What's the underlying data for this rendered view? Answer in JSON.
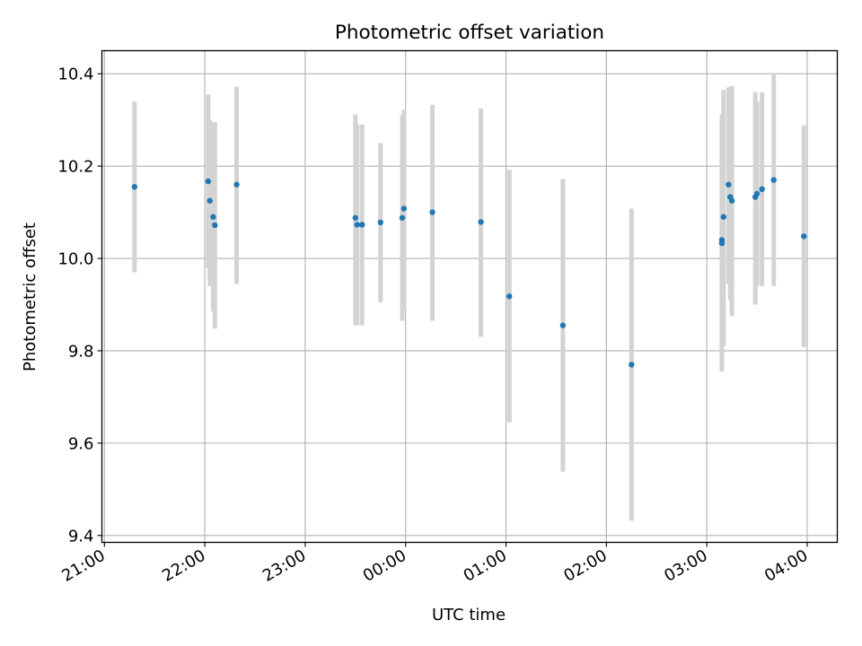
{
  "chart_data": {
    "type": "scatter",
    "title": "Photometric offset variation",
    "xlabel": "UTC time",
    "ylabel": "Photometric offset",
    "xlim_hours": [
      20.975,
      28.3
    ],
    "ylim": [
      9.385,
      10.45
    ],
    "grid": true,
    "x_ticks": [
      {
        "hour": 21,
        "label": "21:00"
      },
      {
        "hour": 22,
        "label": "22:00"
      },
      {
        "hour": 23,
        "label": "23:00"
      },
      {
        "hour": 24,
        "label": "00:00"
      },
      {
        "hour": 25,
        "label": "01:00"
      },
      {
        "hour": 26,
        "label": "02:00"
      },
      {
        "hour": 27,
        "label": "03:00"
      },
      {
        "hour": 28,
        "label": "04:00"
      }
    ],
    "y_ticks": [
      9.4,
      9.6,
      9.8,
      10.0,
      10.2,
      10.4
    ],
    "point_color": "#1f77b4",
    "errorbar_color": "#d3d3d3",
    "points": [
      {
        "time": "21:18",
        "y": 10.155,
        "ylow": 9.97,
        "yhigh": 10.34
      },
      {
        "time": "22:02",
        "y": 10.167,
        "ylow": 9.98,
        "yhigh": 10.355
      },
      {
        "time": "22:03",
        "y": 10.125,
        "ylow": 9.94,
        "yhigh": 10.3
      },
      {
        "time": "22:05",
        "y": 10.09,
        "ylow": 9.885,
        "yhigh": 10.295
      },
      {
        "time": "22:06",
        "y": 10.072,
        "ylow": 9.848,
        "yhigh": 10.295
      },
      {
        "time": "22:19",
        "y": 10.16,
        "ylow": 9.945,
        "yhigh": 10.372
      },
      {
        "time": "23:30",
        "y": 10.088,
        "ylow": 9.855,
        "yhigh": 10.312
      },
      {
        "time": "23:31",
        "y": 10.073,
        "ylow": 9.855,
        "yhigh": 10.29
      },
      {
        "time": "23:34",
        "y": 10.073,
        "ylow": 9.855,
        "yhigh": 10.29
      },
      {
        "time": "23:45",
        "y": 10.078,
        "ylow": 9.905,
        "yhigh": 10.25
      },
      {
        "time": "23:58",
        "y": 10.088,
        "ylow": 9.865,
        "yhigh": 10.31
      },
      {
        "time": "23:59",
        "y": 10.108,
        "ylow": 9.89,
        "yhigh": 10.322
      },
      {
        "time": "00:16",
        "y": 10.1,
        "ylow": 9.865,
        "yhigh": 10.333
      },
      {
        "time": "00:45",
        "y": 10.079,
        "ylow": 9.83,
        "yhigh": 10.325
      },
      {
        "time": "01:02",
        "y": 9.918,
        "ylow": 9.645,
        "yhigh": 10.192
      },
      {
        "time": "01:34",
        "y": 9.855,
        "ylow": 9.538,
        "yhigh": 10.172
      },
      {
        "time": "02:15",
        "y": 9.77,
        "ylow": 9.432,
        "yhigh": 10.108
      },
      {
        "time": "03:09",
        "y": 10.033,
        "ylow": 9.755,
        "yhigh": 10.312
      },
      {
        "time": "03:09",
        "y": 10.04,
        "ylow": 9.81,
        "yhigh": 10.29
      },
      {
        "time": "03:10",
        "y": 10.09,
        "ylow": 9.81,
        "yhigh": 10.365
      },
      {
        "time": "03:13",
        "y": 10.16,
        "ylow": 9.945,
        "yhigh": 10.37
      },
      {
        "time": "03:14",
        "y": 10.133,
        "ylow": 9.91,
        "yhigh": 10.372
      },
      {
        "time": "03:15",
        "y": 10.125,
        "ylow": 9.875,
        "yhigh": 10.373
      },
      {
        "time": "03:29",
        "y": 10.133,
        "ylow": 9.9,
        "yhigh": 10.36
      },
      {
        "time": "03:30",
        "y": 10.14,
        "ylow": 9.94,
        "yhigh": 10.34
      },
      {
        "time": "03:33",
        "y": 10.15,
        "ylow": 9.94,
        "yhigh": 10.36
      },
      {
        "time": "03:40",
        "y": 10.17,
        "ylow": 9.94,
        "yhigh": 10.4
      },
      {
        "time": "03:58",
        "y": 10.048,
        "ylow": 9.808,
        "yhigh": 10.288
      }
    ]
  }
}
